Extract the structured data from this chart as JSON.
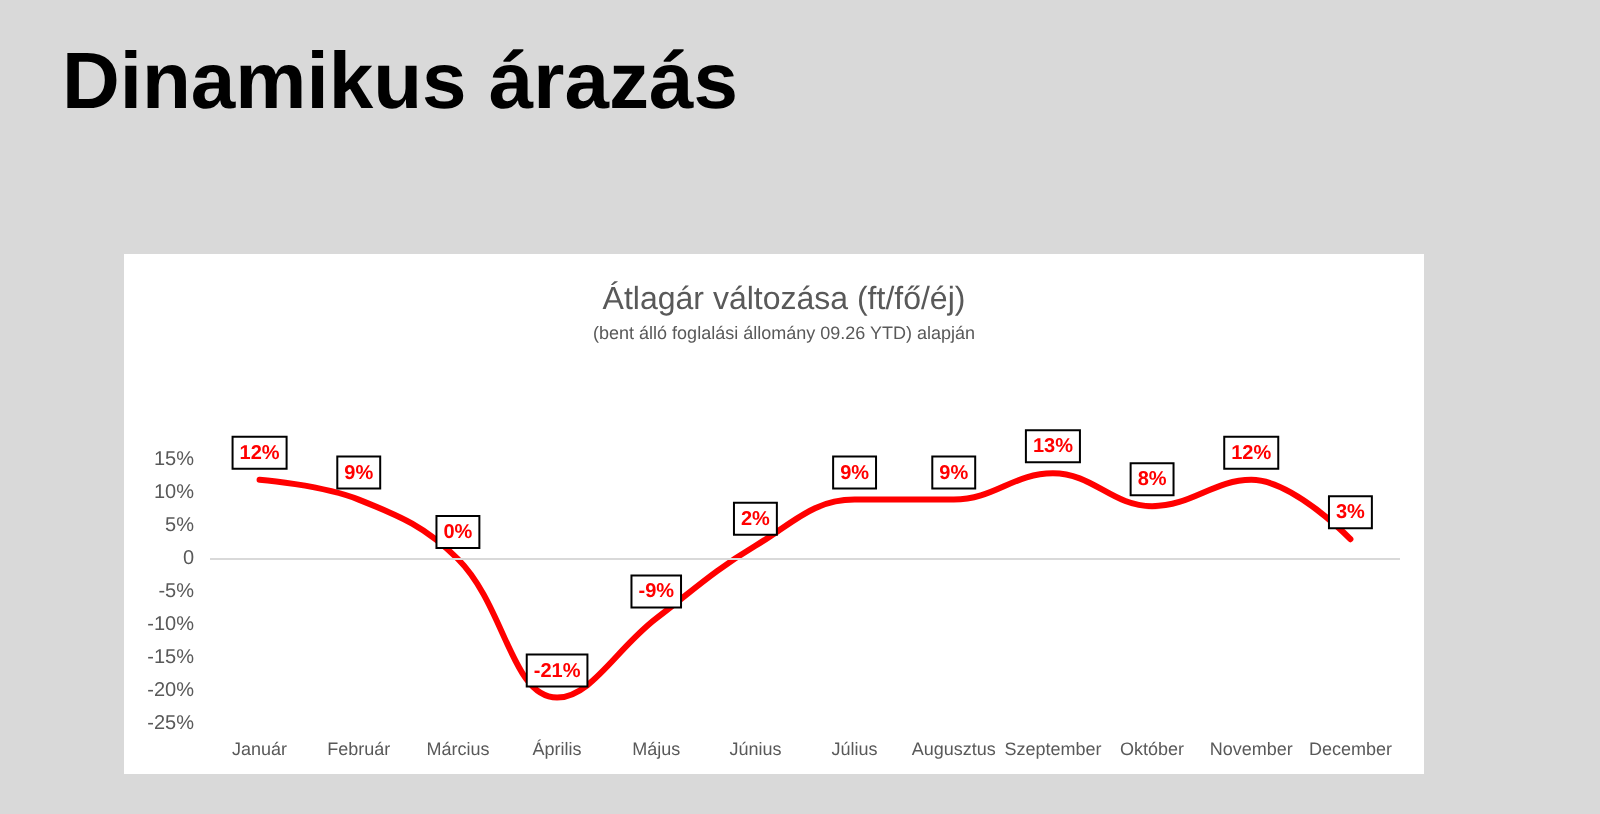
{
  "chart_data": {
    "type": "line",
    "title": "Dinamikus árazás",
    "subtitle": "Átlagár változása (ft/fő/éj)",
    "annotations": [
      "(bent álló foglalási állomány 09.26 YTD) alapján"
    ],
    "categories": [
      "Január",
      "Február",
      "Március",
      "Április",
      "Május",
      "Június",
      "Július",
      "Augusztus",
      "Szeptember",
      "Október",
      "November",
      "December"
    ],
    "series": [
      {
        "color": "#ff0000",
        "values": [
          12,
          9,
          0,
          -21,
          -9,
          2,
          9,
          9,
          13,
          8,
          12,
          3
        ],
        "value_labels": [
          "12%",
          "9%",
          "0%",
          "-21%",
          "-9%",
          "2%",
          "9%",
          "9%",
          "13%",
          "8%",
          "12%",
          "3%"
        ]
      }
    ],
    "ylim": [
      -25,
      15
    ],
    "yticks": [
      {
        "value": -25,
        "label": "-25%"
      },
      {
        "value": -20,
        "label": "-20%"
      },
      {
        "value": -15,
        "label": "-15%"
      },
      {
        "value": -10,
        "label": "-10%"
      },
      {
        "value": -5,
        "label": "-5%"
      },
      {
        "value": 0,
        "label": "0"
      },
      {
        "value": 5,
        "label": "5%"
      },
      {
        "value": 10,
        "label": "10%"
      },
      {
        "value": 15,
        "label": "15%"
      }
    ],
    "ref_lines": [
      {
        "axis": "y",
        "value": 0,
        "color": "#d9d9d9"
      }
    ],
    "grid": false,
    "marker": "none",
    "line_style": "solid"
  }
}
